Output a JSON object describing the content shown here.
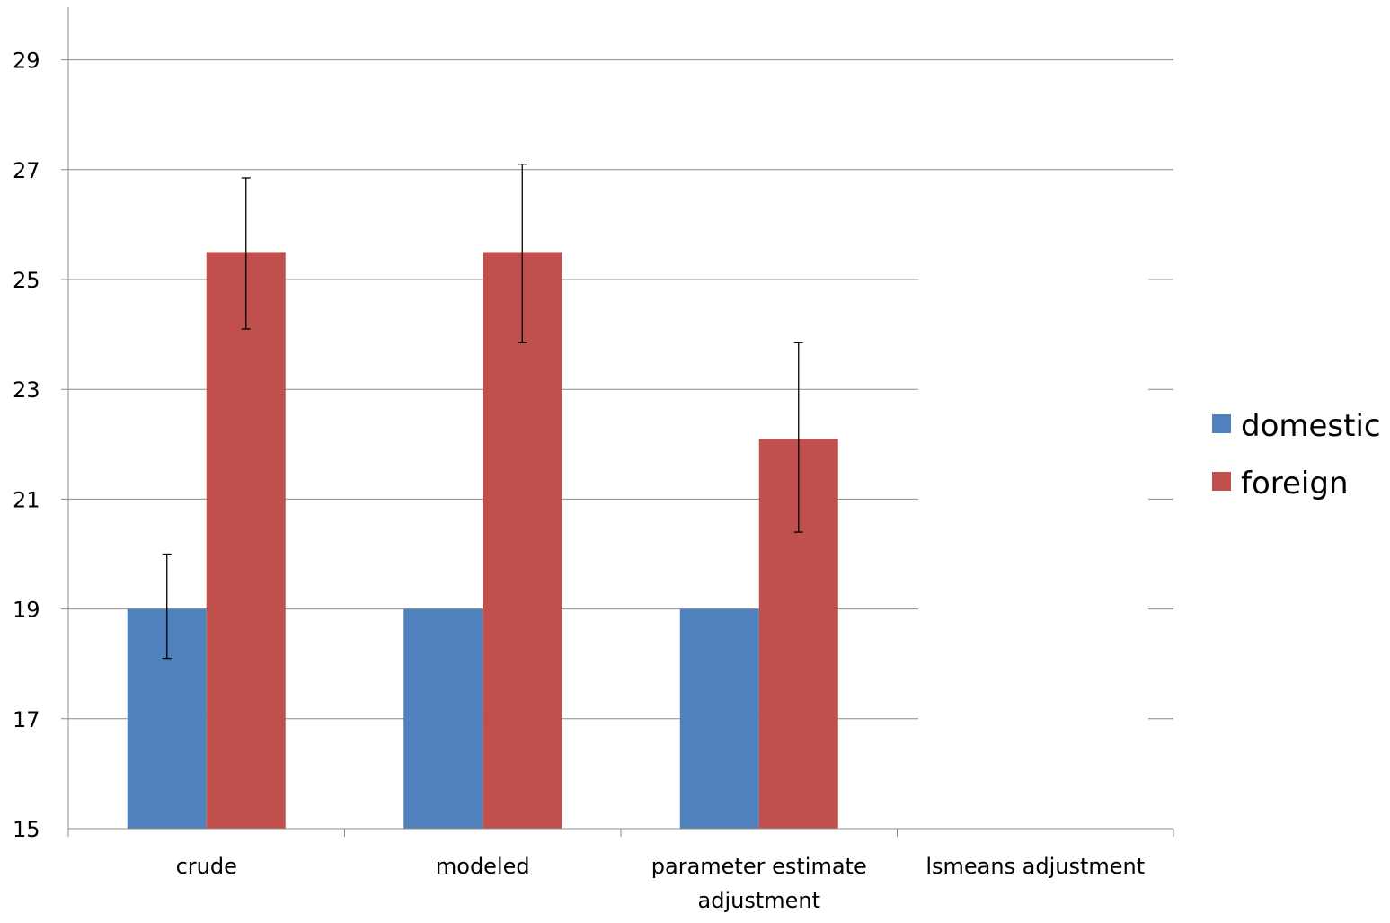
{
  "chart_data": {
    "type": "bar",
    "title": "",
    "xlabel": "",
    "ylabel": "",
    "ylim": [
      15,
      29
    ],
    "yticks": [
      "15",
      "17",
      "19",
      "21",
      "23",
      "25",
      "27",
      "29"
    ],
    "grid": true,
    "legend_position": "right",
    "categories": [
      [
        "crude"
      ],
      [
        "modeled"
      ],
      [
        "parameter estimate",
        "adjustment"
      ],
      [
        "lsmeans adjustment"
      ]
    ],
    "series": [
      {
        "name": "domestic",
        "color": "#4f81bd",
        "values": [
          19.0,
          19.0,
          19.0,
          null
        ],
        "error_low": [
          18.1,
          null,
          null,
          null
        ],
        "error_high": [
          20.0,
          null,
          null,
          null
        ]
      },
      {
        "name": "foreign",
        "color": "#c0504d",
        "values": [
          25.5,
          25.5,
          22.1,
          null
        ],
        "error_low": [
          24.1,
          23.85,
          20.4,
          null
        ],
        "error_high": [
          26.85,
          27.1,
          23.85,
          null
        ]
      }
    ],
    "colors": {
      "grid": "#8c8c8c",
      "axis": "#8c8c8c",
      "error_bar": "#000000",
      "background": "#ffffff"
    }
  }
}
